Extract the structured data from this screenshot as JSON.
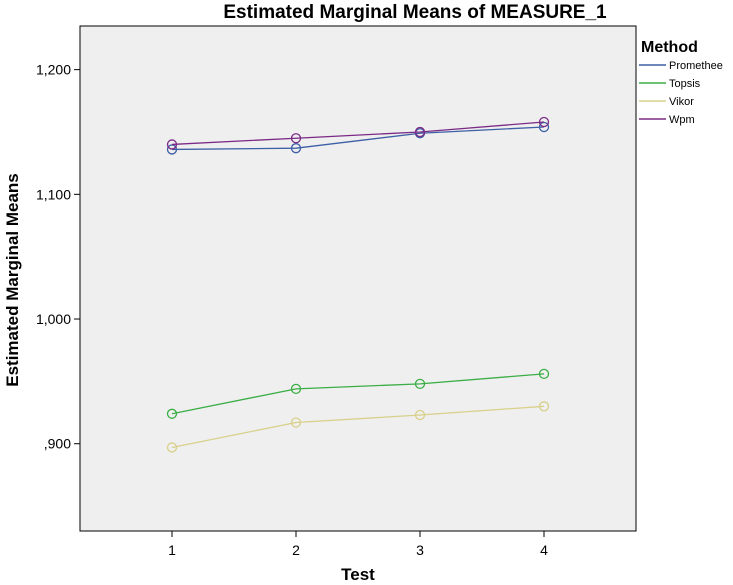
{
  "chart_data": {
    "type": "line",
    "title": "Estimated Marginal Means of MEASURE_1",
    "xlabel": "Test",
    "ylabel": "Estimated Marginal Means",
    "categories": [
      "1",
      "2",
      "3",
      "4"
    ],
    "y_ticks": [
      ",900",
      "1,000",
      "1,100",
      "1,200"
    ],
    "ylim": [
      0.83,
      1.235
    ],
    "grid": false,
    "background_color": "#efefef",
    "legend": {
      "title": "Method",
      "placement": "right"
    },
    "series": [
      {
        "name": "Promethee",
        "color": "#3d5fa6",
        "values": [
          1.136,
          1.137,
          1.149,
          1.154
        ]
      },
      {
        "name": "Topsis",
        "color": "#3aae45",
        "values": [
          0.924,
          0.944,
          0.948,
          0.956
        ]
      },
      {
        "name": "Vikor",
        "color": "#d9d08a",
        "values": [
          0.897,
          0.917,
          0.923,
          0.93
        ]
      },
      {
        "name": "Wpm",
        "color": "#7b2a86",
        "values": [
          1.14,
          1.145,
          1.15,
          1.158
        ]
      }
    ]
  }
}
